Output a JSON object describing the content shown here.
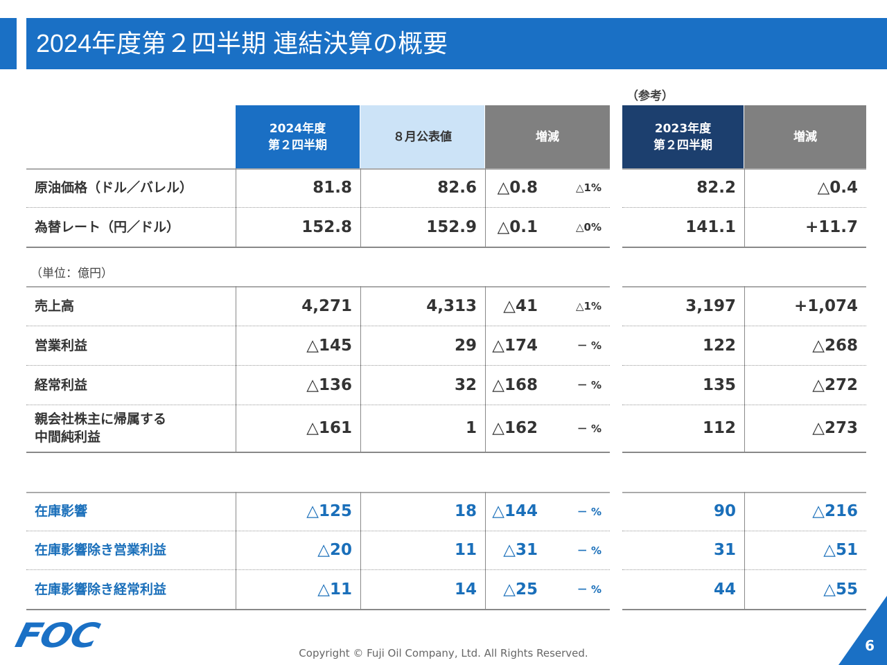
{
  "title": "2024年度第２四半期 連結決算の概要",
  "reference_label": "（参考）",
  "headers": [
    "2024年度\n第２四半期",
    "８月公表値",
    "増減",
    "2023年度\n第２四半期",
    "増減"
  ],
  "colors": {
    "brand": "#1a70c5",
    "header_current": "#1a6fc4",
    "header_forecast": "#cce3f7",
    "header_diff": "#808080",
    "header_prior": "#1c3f6e"
  },
  "macro_rows": [
    {
      "label": "原油価格（ドル／バレル）",
      "current": "81.8",
      "forecast": "82.6",
      "diff": "△0.8",
      "diff_pct": "△1%",
      "prior": "82.2",
      "prior_diff": "△0.4"
    },
    {
      "label": "為替レート（円／ドル）",
      "current": "152.8",
      "forecast": "152.9",
      "diff": "△0.1",
      "diff_pct": "△0%",
      "prior": "141.1",
      "prior_diff": "+11.7"
    }
  ],
  "unit_label": "（単位：億円）",
  "pl_rows": [
    {
      "label": "売上高",
      "current": "4,271",
      "forecast": "4,313",
      "diff": "△41",
      "diff_pct": "△1%",
      "prior": "3,197",
      "prior_diff": "+1,074"
    },
    {
      "label": "営業利益",
      "current": "△145",
      "forecast": "29",
      "diff": "△174",
      "diff_pct": "－ %",
      "prior": "122",
      "prior_diff": "△268"
    },
    {
      "label": "経常利益",
      "current": "△136",
      "forecast": "32",
      "diff": "△168",
      "diff_pct": "－ %",
      "prior": "135",
      "prior_diff": "△272"
    },
    {
      "label": "親会社株主に帰属する\n中間純利益",
      "current": "△161",
      "forecast": "1",
      "diff": "△162",
      "diff_pct": "－ %",
      "prior": "112",
      "prior_diff": "△273"
    }
  ],
  "inventory_rows": [
    {
      "label": "在庫影響",
      "current": "△125",
      "forecast": "18",
      "diff": "△144",
      "diff_pct": "－ %",
      "prior": "90",
      "prior_diff": "△216"
    },
    {
      "label": "在庫影響除き営業利益",
      "current": "△20",
      "forecast": "11",
      "diff": "△31",
      "diff_pct": "－ %",
      "prior": "31",
      "prior_diff": "△51"
    },
    {
      "label": "在庫影響除き経常利益",
      "current": "△11",
      "forecast": "14",
      "diff": "△25",
      "diff_pct": "－ %",
      "prior": "44",
      "prior_diff": "△55"
    }
  ],
  "footer": {
    "logo": "FOC",
    "copyright": "Copyright © Fuji Oil Company, Ltd. All Rights Reserved.",
    "page": "6"
  }
}
